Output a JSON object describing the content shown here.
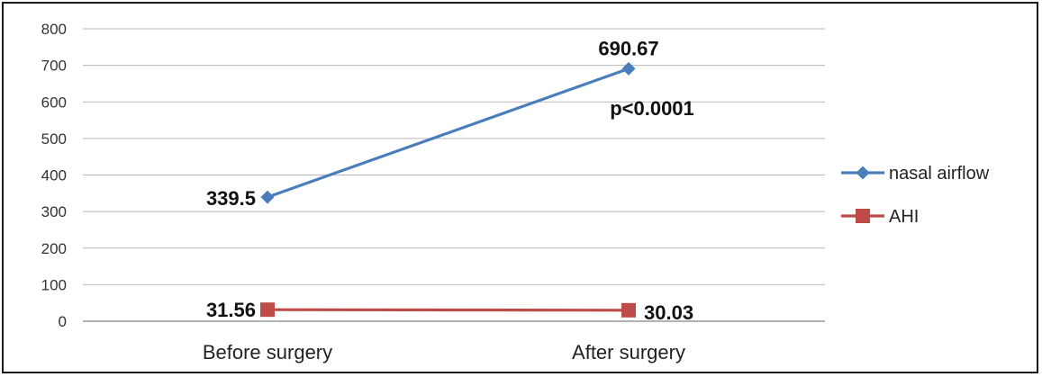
{
  "chart_data": {
    "type": "line",
    "categories": [
      "Before surgery",
      "After surgery"
    ],
    "series": [
      {
        "name": "nasal airflow",
        "values": [
          339.5,
          690.67
        ],
        "labels": [
          "339.5",
          "690.67"
        ],
        "color": "#4A7EBB",
        "marker": "diamond"
      },
      {
        "name": "AHI",
        "values": [
          31.56,
          30.03
        ],
        "labels": [
          "31.56",
          "30.03"
        ],
        "color": "#BE4B48",
        "marker": "square"
      }
    ],
    "ylim": [
      0,
      800
    ],
    "yticks": [
      "0",
      "100",
      "200",
      "300",
      "400",
      "500",
      "600",
      "700",
      "800"
    ],
    "grid": true,
    "legend": "right",
    "annotations": [
      {
        "text": "p<0.0001"
      }
    ],
    "gridColor": "#b9b9b9"
  }
}
